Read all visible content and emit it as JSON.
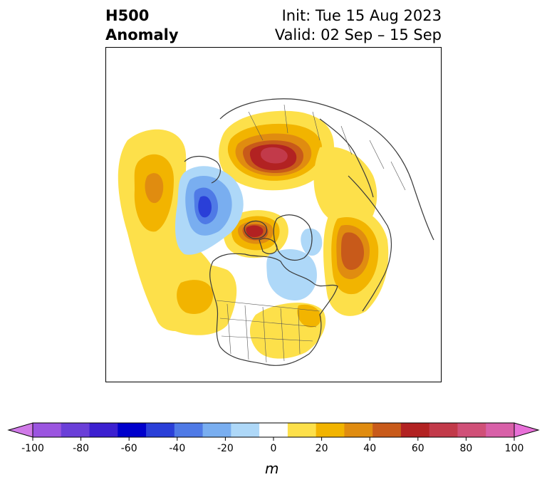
{
  "title": {
    "line1": "H500",
    "line2": "Anomaly",
    "init": "Init: Tue 15 Aug 2023",
    "valid": "Valid: 02 Sep – 15 Sep"
  },
  "colorbar": {
    "unit": "m",
    "min": -100,
    "max": 100,
    "step": 10,
    "extend": "both",
    "tick_values": [
      -100,
      -80,
      -60,
      -40,
      -20,
      0,
      20,
      40,
      60,
      80,
      100
    ],
    "tick_labels": [
      "-100",
      "-80",
      "-60",
      "-40",
      "-20",
      "0",
      "20",
      "40",
      "60",
      "80",
      "100"
    ],
    "colors": [
      "#d07ae8",
      "#9b55e0",
      "#6a3fd8",
      "#3c20d0",
      "#0000cc",
      "#2a3fd8",
      "#4f7ae6",
      "#79aef0",
      "#aed8f8",
      "#ffffff",
      "#fde04a",
      "#f2b400",
      "#e08c10",
      "#c85a1a",
      "#b22222",
      "#c23a4a",
      "#d05078",
      "#d860a8",
      "#e870d8"
    ]
  },
  "palette": {
    "land_outline": "#3a3a3a",
    "border": "#000000"
  }
}
